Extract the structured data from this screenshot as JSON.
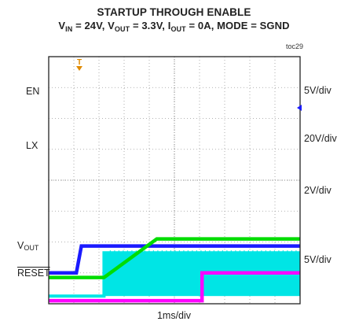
{
  "figure": {
    "title_line1": "STARTUP THROUGH ENABLE",
    "title_line2": {
      "vin_label": "V",
      "vin_sub": "IN",
      "vin_value": " = 24V, ",
      "vout_label": "V",
      "vout_sub": "OUT",
      "vout_value": " = 3.3V, ",
      "iout_label": "I",
      "iout_sub": "OUT",
      "iout_value": " = 0A, MODE = SGND"
    },
    "figure_id": "toc29",
    "x_scale": "1ms/div"
  },
  "chart_data": {
    "type": "line",
    "x_divisions": 10,
    "y_divisions": 8,
    "grid": true,
    "trigger_marker": "T",
    "series": [
      {
        "name": "EN",
        "color": "#1a1aff",
        "scale": "5V/div",
        "points_div": [
          [
            0,
            1.0
          ],
          [
            1.1,
            1.0
          ],
          [
            1.3,
            1.87
          ],
          [
            10,
            1.87
          ]
        ]
      },
      {
        "name": "LX",
        "color": "#00e5e5",
        "scale": "20V/div",
        "points_div": [
          [
            0,
            0.25
          ],
          [
            2.2,
            0.25
          ],
          [
            2.2,
            1.65
          ],
          [
            10,
            1.65
          ]
        ]
      },
      {
        "name": "VOUT",
        "color": "#00dd00",
        "scale": "2V/div",
        "points_div": [
          [
            0,
            0.85
          ],
          [
            2.2,
            0.85
          ],
          [
            4.3,
            2.1
          ],
          [
            10,
            2.1
          ]
        ]
      },
      {
        "name": "RESET",
        "color": "#ff00ff",
        "scale": "5V/div",
        "points_div": [
          [
            0,
            0.1
          ],
          [
            6.1,
            0.1
          ],
          [
            6.1,
            1.0
          ],
          [
            10,
            1.0
          ]
        ]
      }
    ],
    "channel_labels": [
      {
        "text": "EN"
      },
      {
        "text": "LX"
      },
      {
        "text": "V",
        "sub": "OUT"
      },
      {
        "text": "RESET",
        "overline": true
      }
    ],
    "scale_labels": [
      "5V/div",
      "20V/div",
      "2V/div",
      "5V/div"
    ]
  }
}
